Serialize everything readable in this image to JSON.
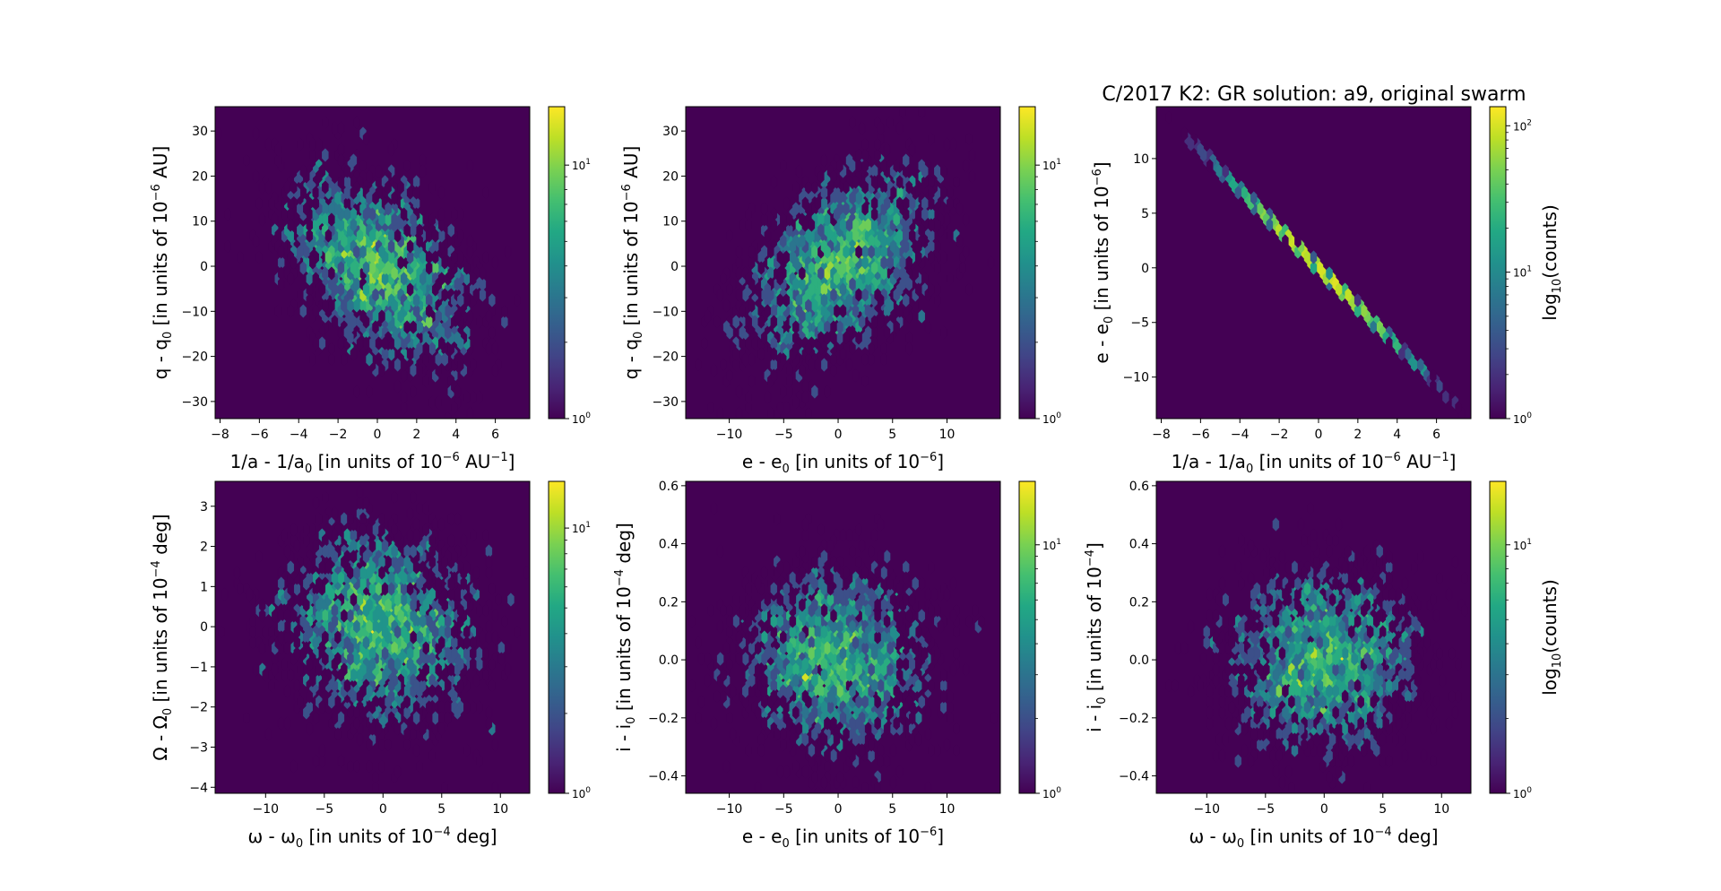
{
  "figure": {
    "title": "C/2017 K2:  GR solution: a9, original swarm",
    "background": "#ffffff",
    "colormap": "viridis",
    "empty_color": "#440154"
  },
  "chart_data": [
    {
      "type": "heatmap",
      "subtype": "hexbin",
      "panel": "top-left",
      "xlabel": {
        "base": "1/a - 1/a",
        "sub": "0",
        "mid": " [in units of 10",
        "sup1": "−6",
        "mid2": " AU",
        "sup2": "−1",
        "end": "]"
      },
      "ylabel": {
        "base": "q - q",
        "sub": "0",
        "mid": " [in units of 10",
        "sup1": "−6",
        "mid2": " AU]",
        "sup2": "",
        "end": ""
      },
      "xlim": [
        -8.25,
        7.75
      ],
      "ylim": [
        -33.8,
        35.4
      ],
      "xticks": [
        "−8",
        "−6",
        "−4",
        "−2",
        "0",
        "2",
        "4",
        "6"
      ],
      "xtick_values": [
        -8,
        -6,
        -4,
        -2,
        0,
        2,
        4,
        6
      ],
      "yticks": [
        "−30",
        "−20",
        "−10",
        "0",
        "10",
        "20",
        "30"
      ],
      "ytick_values": [
        -30,
        -20,
        -10,
        0,
        10,
        20,
        30
      ],
      "colorbar": {
        "scale": "log",
        "vmin": 1,
        "vmax": 17,
        "ticks": [
          {
            "base": "10",
            "exp": "0",
            "value": 1
          },
          {
            "base": "10",
            "exp": "1",
            "value": 10
          }
        ],
        "label": ""
      },
      "distribution": {
        "n": 2600,
        "mean": [
          0,
          0
        ],
        "sigma": [
          2.3,
          10.5
        ],
        "corr": -0.45,
        "seed": 11
      },
      "gridsize": 50
    },
    {
      "type": "heatmap",
      "subtype": "hexbin",
      "panel": "top-middle",
      "xlabel": {
        "base": "e - e",
        "sub": "0",
        "mid": " [in units of 10",
        "sup1": "−6",
        "mid2": "]",
        "sup2": "",
        "end": ""
      },
      "ylabel": {
        "base": "q - q",
        "sub": "0",
        "mid": " [in units of 10",
        "sup1": "−6",
        "mid2": " AU]",
        "sup2": "",
        "end": ""
      },
      "xlim": [
        -14.0,
        14.9
      ],
      "ylim": [
        -33.8,
        35.4
      ],
      "xticks": [
        "−10",
        "−5",
        "0",
        "5",
        "10"
      ],
      "xtick_values": [
        -10,
        -5,
        0,
        5,
        10
      ],
      "yticks": [
        "−30",
        "−20",
        "−10",
        "0",
        "10",
        "20",
        "30"
      ],
      "ytick_values": [
        -30,
        -20,
        -10,
        0,
        10,
        20,
        30
      ],
      "colorbar": {
        "scale": "log",
        "vmin": 1,
        "vmax": 17,
        "ticks": [
          {
            "base": "10",
            "exp": "0",
            "value": 1
          },
          {
            "base": "10",
            "exp": "1",
            "value": 10
          }
        ],
        "label": ""
      },
      "distribution": {
        "n": 2600,
        "mean": [
          0,
          0
        ],
        "sigma": [
          4.2,
          10.5
        ],
        "corr": 0.45,
        "seed": 23
      },
      "gridsize": 50
    },
    {
      "type": "heatmap",
      "subtype": "hexbin",
      "panel": "top-right",
      "xlabel": {
        "base": "1/a - 1/a",
        "sub": "0",
        "mid": " [in units of 10",
        "sup1": "−6",
        "mid2": " AU",
        "sup2": "−1",
        "end": "]"
      },
      "ylabel": {
        "base": "e - e",
        "sub": "0",
        "mid": " [in units of 10",
        "sup1": "−6",
        "mid2": "]",
        "sup2": "",
        "end": ""
      },
      "xlim": [
        -8.25,
        7.75
      ],
      "ylim": [
        -13.8,
        14.75
      ],
      "xticks": [
        "−8",
        "−6",
        "−4",
        "−2",
        "0",
        "2",
        "4",
        "6"
      ],
      "xtick_values": [
        -8,
        -6,
        -4,
        -2,
        0,
        2,
        4,
        6
      ],
      "yticks": [
        "−10",
        "−5",
        "0",
        "5",
        "10"
      ],
      "ytick_values": [
        -10,
        -5,
        0,
        5,
        10
      ],
      "colorbar": {
        "scale": "log",
        "vmin": 1,
        "vmax": 135,
        "ticks": [
          {
            "base": "10",
            "exp": "0",
            "value": 1
          },
          {
            "base": "10",
            "exp": "1",
            "value": 10
          },
          {
            "base": "10",
            "exp": "2",
            "value": 100
          }
        ],
        "label": "log",
        "label_sub": "10",
        "label_end": "(counts)"
      },
      "distribution": {
        "n": 2600,
        "mean": [
          0,
          0
        ],
        "sigma": [
          2.3,
          4.1
        ],
        "corr": -1.0,
        "slope": -1.78,
        "seed": 37
      },
      "gridsize": 50
    },
    {
      "type": "heatmap",
      "subtype": "hexbin",
      "panel": "bottom-left",
      "xlabel": {
        "base": "ω - ω",
        "sub": "0",
        "mid": " [in units of 10",
        "sup1": "−4",
        "mid2": " deg]",
        "sup2": "",
        "end": ""
      },
      "ylabel": {
        "base": "Ω - Ω",
        "sub": "0",
        "mid": " [in units of 10",
        "sup1": "−4",
        "mid2": " deg]",
        "sup2": "",
        "end": ""
      },
      "xlim": [
        -14.3,
        12.5
      ],
      "ylim": [
        -4.15,
        3.62
      ],
      "xticks": [
        "−10",
        "−5",
        "0",
        "5",
        "10"
      ],
      "xtick_values": [
        -10,
        -5,
        0,
        5,
        10
      ],
      "yticks": [
        "−4",
        "−3",
        "−2",
        "−1",
        "0",
        "1",
        "2",
        "3"
      ],
      "ytick_values": [
        -4,
        -3,
        -2,
        -1,
        0,
        1,
        2,
        3
      ],
      "colorbar": {
        "scale": "log",
        "vmin": 1,
        "vmax": 15,
        "ticks": [
          {
            "base": "10",
            "exp": "0",
            "value": 1
          },
          {
            "base": "10",
            "exp": "1",
            "value": 10
          }
        ],
        "label": ""
      },
      "distribution": {
        "n": 2600,
        "mean": [
          0,
          0
        ],
        "sigma": [
          4.0,
          1.2
        ],
        "corr": -0.1,
        "seed": 53
      },
      "gridsize": 50
    },
    {
      "type": "heatmap",
      "subtype": "hexbin",
      "panel": "bottom-middle",
      "xlabel": {
        "base": "e - e",
        "sub": "0",
        "mid": " [in units of 10",
        "sup1": "−6",
        "mid2": "]",
        "sup2": "",
        "end": ""
      },
      "ylabel": {
        "base": "i - i",
        "sub": "0",
        "mid": " [in units of 10",
        "sup1": "−4",
        "mid2": " deg]",
        "sup2": "",
        "end": ""
      },
      "xlim": [
        -14.0,
        14.9
      ],
      "ylim": [
        -0.46,
        0.615
      ],
      "xticks": [
        "−10",
        "−5",
        "0",
        "5",
        "10"
      ],
      "xtick_values": [
        -10,
        -5,
        0,
        5,
        10
      ],
      "yticks": [
        "−0.4",
        "−0.2",
        "0.0",
        "0.2",
        "0.4",
        "0.6"
      ],
      "ytick_values": [
        -0.4,
        -0.2,
        0.0,
        0.2,
        0.4,
        0.6
      ],
      "colorbar": {
        "scale": "log",
        "vmin": 1,
        "vmax": 18,
        "ticks": [
          {
            "base": "10",
            "exp": "0",
            "value": 1
          },
          {
            "base": "10",
            "exp": "1",
            "value": 10
          }
        ],
        "label": ""
      },
      "distribution": {
        "n": 2600,
        "mean": [
          0,
          0
        ],
        "sigma": [
          4.2,
          0.15
        ],
        "corr": 0.0,
        "seed": 71
      },
      "gridsize": 50
    },
    {
      "type": "heatmap",
      "subtype": "hexbin",
      "panel": "bottom-right",
      "xlabel": {
        "base": "ω - ω",
        "sub": "0",
        "mid": " [in units of 10",
        "sup1": "−4",
        "mid2": " deg]",
        "sup2": "",
        "end": ""
      },
      "ylabel": {
        "base": "i - i",
        "sub": "0",
        "mid": " [in units of 10",
        "sup1": "−4",
        "mid2": "]",
        "sup2": "",
        "end": ""
      },
      "xlim": [
        -14.3,
        12.5
      ],
      "ylim": [
        -0.46,
        0.615
      ],
      "xticks": [
        "−10",
        "−5",
        "0",
        "5",
        "10"
      ],
      "xtick_values": [
        -10,
        -5,
        0,
        5,
        10
      ],
      "yticks": [
        "−0.4",
        "−0.2",
        "0.0",
        "0.2",
        "0.4",
        "0.6"
      ],
      "ytick_values": [
        -0.4,
        -0.2,
        0.0,
        0.2,
        0.4,
        0.6
      ],
      "colorbar": {
        "scale": "log",
        "vmin": 1,
        "vmax": 18,
        "ticks": [
          {
            "base": "10",
            "exp": "0",
            "value": 1
          },
          {
            "base": "10",
            "exp": "1",
            "value": 10
          }
        ],
        "label": "log",
        "label_sub": "10",
        "label_end": "(counts)"
      },
      "distribution": {
        "n": 2600,
        "mean": [
          0,
          0
        ],
        "sigma": [
          4.0,
          0.15
        ],
        "corr": 0.0,
        "seed": 97
      },
      "gridsize": 50
    }
  ]
}
